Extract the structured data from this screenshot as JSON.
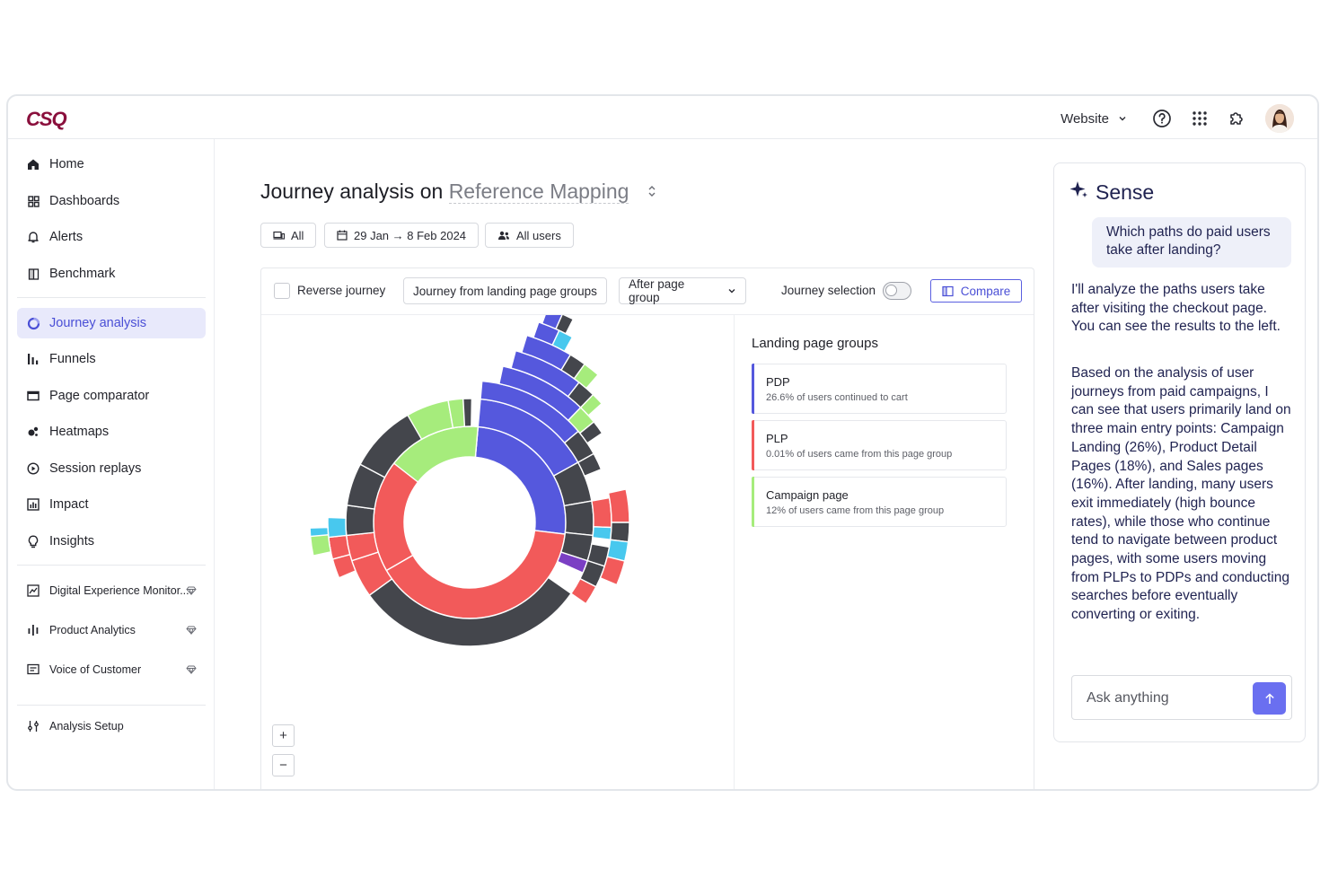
{
  "app": {
    "logo_text": "CSQ",
    "brand_color": "#8a0f3c",
    "accent_color": "#5a5fe0"
  },
  "topbar": {
    "website_select": "Website",
    "icons": [
      "help-circle-icon",
      "apps-grid-icon",
      "puzzle-extension-icon",
      "user-avatar"
    ]
  },
  "sidebar": {
    "items": [
      {
        "label": "Home",
        "icon": "home-icon"
      },
      {
        "label": "Dashboards",
        "icon": "dashboard-icon"
      },
      {
        "label": "Alerts",
        "icon": "bell-icon"
      },
      {
        "label": "Benchmark",
        "icon": "benchmark-icon"
      },
      {
        "label": "Journey analysis",
        "icon": "journey-icon",
        "active": true
      },
      {
        "label": "Funnels",
        "icon": "funnel-bars-icon"
      },
      {
        "label": "Page comparator",
        "icon": "page-comparator-icon"
      },
      {
        "label": "Heatmaps",
        "icon": "heatmap-icon"
      },
      {
        "label": "Session replays",
        "icon": "play-circle-icon"
      },
      {
        "label": "Impact",
        "icon": "impact-chart-icon"
      },
      {
        "label": "Insights",
        "icon": "lightbulb-icon"
      },
      {
        "label": "Digital Experience Monitor...",
        "icon": "monitor-icon",
        "premium": true
      },
      {
        "label": "Product Analytics",
        "icon": "analytics-icon",
        "premium": true
      },
      {
        "label": "Voice of Customer",
        "icon": "voice-icon",
        "premium": true
      },
      {
        "label": "Analysis Setup",
        "icon": "sliders-icon"
      }
    ]
  },
  "main": {
    "title_prefix": "Journey analysis on",
    "title_mapping": "Reference Mapping",
    "filters": {
      "device": "All",
      "date_range": "29 Jan → 8 Feb 2024",
      "segment": "All users"
    },
    "toolbar": {
      "reverse_label": "Reverse journey",
      "journey_from": "Journey from landing page groups",
      "after_select": "After page group",
      "journey_selection": "Journey selection",
      "journey_selection_on": false,
      "compare": "Compare"
    },
    "zoom": {
      "in": "+",
      "out": "−"
    },
    "groups": {
      "title": "Landing page groups",
      "items": [
        {
          "name": "PDP",
          "desc": "26.6% of users continued to cart",
          "color": "#5558dd"
        },
        {
          "name": "PLP",
          "desc": "0.01% of users came from this page group",
          "color": "#f25a5a"
        },
        {
          "name": "Campaign page",
          "desc": "12% of users came from this page group",
          "color": "#a6ec7c"
        }
      ]
    }
  },
  "colors": {
    "pdp": "#5558dd",
    "plp": "#f25a5a",
    "campaign": "#a6ec7c",
    "exit": "#44464c",
    "search": "#48c8ee",
    "other": "#7b3fc4"
  },
  "sense": {
    "title": "Sense",
    "user_message": "Which paths do paid users take after landing?",
    "reply_1": "I'll analyze the paths users take after visiting the checkout page. You can see the results to the left.",
    "reply_2": "Based on the analysis of user journeys from paid campaigns, I can see that users primarily land on three main entry points: Campaign Landing (26%), Product Detail Pages (18%), and Sales pages (16%). After landing, many users exit immediately (high bounce rates), while those who continue tend to navigate between product pages, with some users moving from PLPs to PDPs and conducting searches before eventually converting or exiting.",
    "input_placeholder": "Ask anything"
  }
}
